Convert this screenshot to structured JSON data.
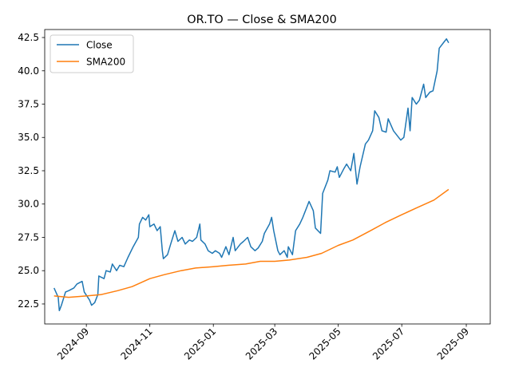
{
  "chart_data": {
    "type": "line",
    "title": "OR.TO — Close & SMA200",
    "xlabel": "",
    "ylabel": "",
    "xlim": [
      "2024-07-23",
      "2025-09-24"
    ],
    "ylim": [
      21.0,
      43.1
    ],
    "grid": false,
    "legend_position": "top-left",
    "x_ticks": [
      "2024-09",
      "2024-11",
      "2025-01",
      "2025-03",
      "2025-05",
      "2025-07",
      "2025-09"
    ],
    "y_ticks": [
      "22.5",
      "25.0",
      "27.5",
      "30.0",
      "32.5",
      "35.0",
      "37.5",
      "40.0",
      "42.5"
    ],
    "series": [
      {
        "name": "Close",
        "color": "#1f77b4",
        "points": [
          [
            "2024-08-01",
            23.7
          ],
          [
            "2024-08-05",
            23.0
          ],
          [
            "2024-08-06",
            22.0
          ],
          [
            "2024-08-08",
            22.4
          ],
          [
            "2024-08-12",
            23.4
          ],
          [
            "2024-08-15",
            23.5
          ],
          [
            "2024-08-20",
            23.7
          ],
          [
            "2024-08-23",
            24.0
          ],
          [
            "2024-08-28",
            24.2
          ],
          [
            "2024-08-30",
            23.4
          ],
          [
            "2024-09-04",
            22.8
          ],
          [
            "2024-09-06",
            22.4
          ],
          [
            "2024-09-09",
            22.6
          ],
          [
            "2024-09-12",
            23.2
          ],
          [
            "2024-09-13",
            24.6
          ],
          [
            "2024-09-18",
            24.4
          ],
          [
            "2024-09-20",
            25.0
          ],
          [
            "2024-09-24",
            24.9
          ],
          [
            "2024-09-26",
            25.5
          ],
          [
            "2024-09-30",
            25.0
          ],
          [
            "2024-10-03",
            25.4
          ],
          [
            "2024-10-07",
            25.3
          ],
          [
            "2024-10-11",
            26.0
          ],
          [
            "2024-10-16",
            26.8
          ],
          [
            "2024-10-21",
            27.5
          ],
          [
            "2024-10-22",
            28.5
          ],
          [
            "2024-10-25",
            29.0
          ],
          [
            "2024-10-28",
            28.8
          ],
          [
            "2024-10-31",
            29.2
          ],
          [
            "2024-11-01",
            28.3
          ],
          [
            "2024-11-05",
            28.5
          ],
          [
            "2024-11-08",
            28.0
          ],
          [
            "2024-11-11",
            28.3
          ],
          [
            "2024-11-13",
            26.5
          ],
          [
            "2024-11-14",
            25.9
          ],
          [
            "2024-11-18",
            26.2
          ],
          [
            "2024-11-21",
            27.0
          ],
          [
            "2024-11-25",
            28.0
          ],
          [
            "2024-11-28",
            27.2
          ],
          [
            "2024-12-02",
            27.5
          ],
          [
            "2024-12-05",
            27.0
          ],
          [
            "2024-12-09",
            27.3
          ],
          [
            "2024-12-12",
            27.2
          ],
          [
            "2024-12-16",
            27.5
          ],
          [
            "2024-12-19",
            28.5
          ],
          [
            "2024-12-20",
            27.3
          ],
          [
            "2024-12-24",
            27.0
          ],
          [
            "2024-12-27",
            26.5
          ],
          [
            "2024-12-31",
            26.3
          ],
          [
            "2025-01-03",
            26.5
          ],
          [
            "2025-01-07",
            26.3
          ],
          [
            "2025-01-09",
            26.0
          ],
          [
            "2025-01-13",
            26.8
          ],
          [
            "2025-01-16",
            26.2
          ],
          [
            "2025-01-20",
            27.5
          ],
          [
            "2025-01-22",
            26.5
          ],
          [
            "2025-01-27",
            27.0
          ],
          [
            "2025-01-30",
            27.2
          ],
          [
            "2025-02-03",
            27.5
          ],
          [
            "2025-02-06",
            26.8
          ],
          [
            "2025-02-10",
            26.5
          ],
          [
            "2025-02-13",
            26.7
          ],
          [
            "2025-02-17",
            27.2
          ],
          [
            "2025-02-19",
            27.8
          ],
          [
            "2025-02-24",
            28.5
          ],
          [
            "2025-02-26",
            29.0
          ],
          [
            "2025-02-28",
            28.0
          ],
          [
            "2025-03-04",
            26.5
          ],
          [
            "2025-03-06",
            26.2
          ],
          [
            "2025-03-10",
            26.5
          ],
          [
            "2025-03-13",
            26.0
          ],
          [
            "2025-03-14",
            26.8
          ],
          [
            "2025-03-18",
            26.2
          ],
          [
            "2025-03-21",
            28.0
          ],
          [
            "2025-03-25",
            28.5
          ],
          [
            "2025-03-28",
            29.0
          ],
          [
            "2025-04-01",
            29.8
          ],
          [
            "2025-04-03",
            30.2
          ],
          [
            "2025-04-07",
            29.5
          ],
          [
            "2025-04-09",
            28.2
          ],
          [
            "2025-04-14",
            27.8
          ],
          [
            "2025-04-16",
            30.8
          ],
          [
            "2025-04-21",
            31.8
          ],
          [
            "2025-04-23",
            32.5
          ],
          [
            "2025-04-28",
            32.4
          ],
          [
            "2025-04-30",
            32.8
          ],
          [
            "2025-05-02",
            32.0
          ],
          [
            "2025-05-06",
            32.6
          ],
          [
            "2025-05-09",
            33.0
          ],
          [
            "2025-05-13",
            32.5
          ],
          [
            "2025-05-16",
            33.8
          ],
          [
            "2025-05-19",
            31.5
          ],
          [
            "2025-05-22",
            32.8
          ],
          [
            "2025-05-27",
            34.5
          ],
          [
            "2025-05-30",
            34.8
          ],
          [
            "2025-06-03",
            35.5
          ],
          [
            "2025-06-05",
            37.0
          ],
          [
            "2025-06-09",
            36.5
          ],
          [
            "2025-06-12",
            35.5
          ],
          [
            "2025-06-16",
            35.4
          ],
          [
            "2025-06-18",
            36.4
          ],
          [
            "2025-06-23",
            35.5
          ],
          [
            "2025-06-26",
            35.2
          ],
          [
            "2025-06-30",
            34.8
          ],
          [
            "2025-07-03",
            35.0
          ],
          [
            "2025-07-07",
            37.2
          ],
          [
            "2025-07-09",
            35.5
          ],
          [
            "2025-07-11",
            38.0
          ],
          [
            "2025-07-15",
            37.5
          ],
          [
            "2025-07-18",
            37.8
          ],
          [
            "2025-07-22",
            39.0
          ],
          [
            "2025-07-24",
            38.0
          ],
          [
            "2025-07-28",
            38.4
          ],
          [
            "2025-07-31",
            38.5
          ],
          [
            "2025-08-04",
            40.0
          ],
          [
            "2025-08-06",
            41.7
          ],
          [
            "2025-08-11",
            42.2
          ],
          [
            "2025-08-13",
            42.4
          ],
          [
            "2025-08-15",
            42.1
          ]
        ]
      },
      {
        "name": "SMA200",
        "color": "#ff7f0e",
        "points": [
          [
            "2024-08-01",
            23.1
          ],
          [
            "2024-08-15",
            23.0
          ],
          [
            "2024-09-01",
            23.1
          ],
          [
            "2024-09-15",
            23.2
          ],
          [
            "2024-10-01",
            23.5
          ],
          [
            "2024-10-15",
            23.8
          ],
          [
            "2024-11-01",
            24.4
          ],
          [
            "2024-11-15",
            24.7
          ],
          [
            "2024-12-01",
            25.0
          ],
          [
            "2024-12-15",
            25.2
          ],
          [
            "2025-01-01",
            25.3
          ],
          [
            "2025-01-15",
            25.4
          ],
          [
            "2025-02-01",
            25.5
          ],
          [
            "2025-02-15",
            25.7
          ],
          [
            "2025-03-01",
            25.7
          ],
          [
            "2025-03-15",
            25.8
          ],
          [
            "2025-04-01",
            26.0
          ],
          [
            "2025-04-15",
            26.3
          ],
          [
            "2025-05-01",
            26.9
          ],
          [
            "2025-05-15",
            27.3
          ],
          [
            "2025-06-01",
            28.0
          ],
          [
            "2025-06-15",
            28.6
          ],
          [
            "2025-07-01",
            29.2
          ],
          [
            "2025-07-15",
            29.7
          ],
          [
            "2025-08-01",
            30.3
          ],
          [
            "2025-08-15",
            31.1
          ]
        ]
      }
    ]
  }
}
